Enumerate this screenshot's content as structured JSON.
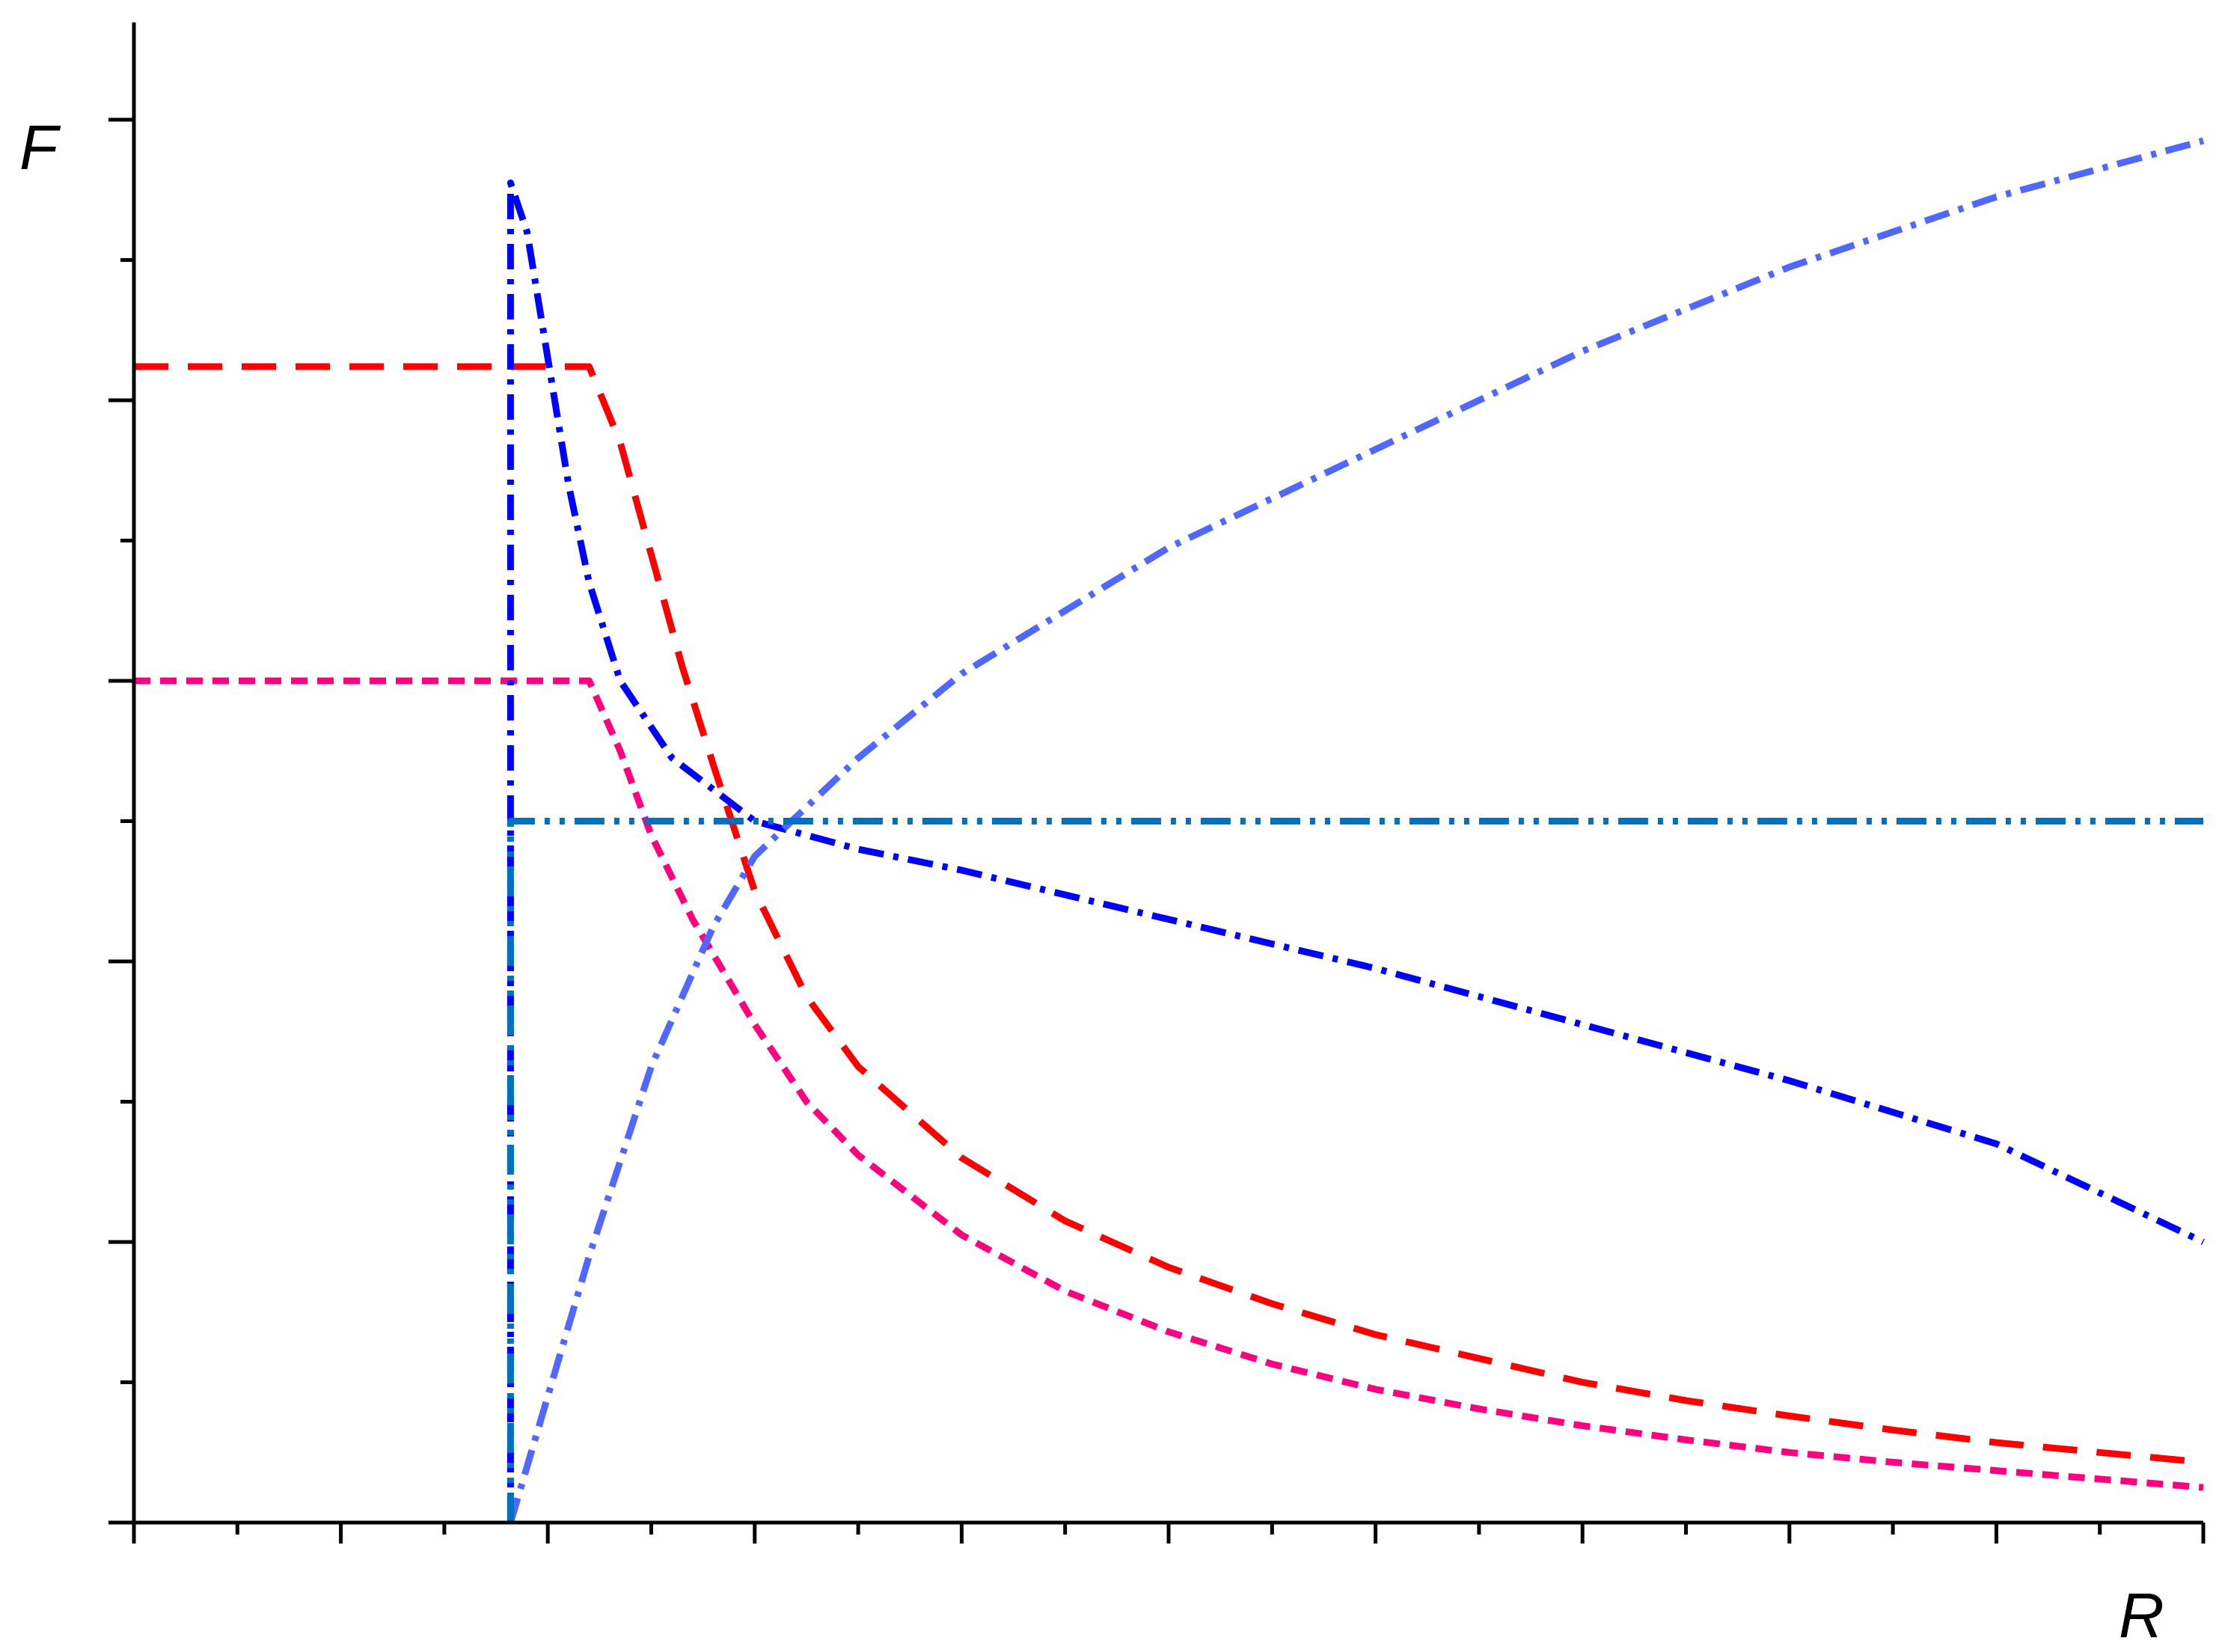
{
  "chart_data": {
    "type": "line",
    "xlabel": "R",
    "ylabel": "F",
    "xlim": [
      0,
      10
    ],
    "ylim": [
      0,
      10
    ],
    "x_ticks": {
      "major": [
        0,
        1,
        2,
        3,
        4,
        5,
        6,
        7,
        8,
        9,
        10
      ],
      "minor": [
        0.5,
        1.5,
        2.5,
        3.5,
        4.5,
        5.5,
        6.5,
        7.5,
        8.5,
        9.5
      ]
    },
    "y_ticks": {
      "major": [
        0,
        2,
        4,
        6,
        8,
        10
      ],
      "minor": [
        1,
        3,
        5,
        7,
        9
      ]
    },
    "tick_labels_shown": false,
    "grid": false,
    "legend": "none",
    "series": [
      {
        "color": "#ff0000",
        "style": "long-dash",
        "points": [
          [
            0,
            8.24
          ],
          [
            2.2,
            8.24
          ],
          [
            2.35,
            7.7
          ],
          [
            2.5,
            6.9
          ],
          [
            2.65,
            6.1
          ],
          [
            2.8,
            5.4
          ],
          [
            3.0,
            4.5
          ],
          [
            3.25,
            3.75
          ],
          [
            3.5,
            3.25
          ],
          [
            4.0,
            2.6
          ],
          [
            4.5,
            2.15
          ],
          [
            5.0,
            1.82
          ],
          [
            5.5,
            1.56
          ],
          [
            6.0,
            1.34
          ],
          [
            6.5,
            1.17
          ],
          [
            7.0,
            1.0
          ],
          [
            7.5,
            0.87
          ],
          [
            8.0,
            0.76
          ],
          [
            8.5,
            0.66
          ],
          [
            9.0,
            0.57
          ],
          [
            9.5,
            0.5
          ],
          [
            10.0,
            0.43
          ]
        ]
      },
      {
        "color": "#ff0080",
        "style": "short-dash",
        "points": [
          [
            0,
            6.0
          ],
          [
            2.2,
            6.0
          ],
          [
            2.35,
            5.5
          ],
          [
            2.5,
            4.9
          ],
          [
            2.7,
            4.3
          ],
          [
            3.0,
            3.55
          ],
          [
            3.25,
            3.0
          ],
          [
            3.5,
            2.62
          ],
          [
            4.0,
            2.05
          ],
          [
            4.5,
            1.65
          ],
          [
            5.0,
            1.36
          ],
          [
            5.5,
            1.13
          ],
          [
            6.0,
            0.95
          ],
          [
            6.5,
            0.81
          ],
          [
            7.0,
            0.69
          ],
          [
            7.5,
            0.59
          ],
          [
            8.0,
            0.5
          ],
          [
            8.5,
            0.43
          ],
          [
            9.0,
            0.37
          ],
          [
            9.5,
            0.31
          ],
          [
            10.0,
            0.25
          ]
        ]
      },
      {
        "color": "#0000ff",
        "style": "dash-dot",
        "points": [
          [
            1.82,
            0.0
          ],
          [
            1.82,
            9.55
          ],
          [
            1.9,
            9.2
          ],
          [
            2.0,
            8.3
          ],
          [
            2.1,
            7.4
          ],
          [
            2.2,
            6.7
          ],
          [
            2.35,
            6.0
          ],
          [
            2.6,
            5.45
          ],
          [
            3.0,
            5.0
          ],
          [
            3.5,
            4.8
          ],
          [
            4.0,
            4.65
          ],
          [
            5.0,
            4.3
          ],
          [
            6.0,
            3.95
          ],
          [
            7.0,
            3.55
          ],
          [
            8.0,
            3.15
          ],
          [
            9.0,
            2.7
          ],
          [
            10.0,
            2.0
          ]
        ]
      },
      {
        "color": "#5068ff",
        "style": "dash-dot",
        "points": [
          [
            1.82,
            0.0
          ],
          [
            2.0,
            0.9
          ],
          [
            2.2,
            1.9
          ],
          [
            2.5,
            3.25
          ],
          [
            2.8,
            4.25
          ],
          [
            3.0,
            4.75
          ],
          [
            3.5,
            5.45
          ],
          [
            4.0,
            6.05
          ],
          [
            5.0,
            6.95
          ],
          [
            6.0,
            7.65
          ],
          [
            7.0,
            8.35
          ],
          [
            8.0,
            8.95
          ],
          [
            9.0,
            9.45
          ],
          [
            10.0,
            9.85
          ]
        ]
      },
      {
        "color": "#0070c0",
        "style": "dash-dot-dot",
        "points": [
          [
            1.82,
            0.0
          ],
          [
            1.82,
            5.0
          ],
          [
            10.0,
            5.0
          ]
        ]
      }
    ]
  }
}
